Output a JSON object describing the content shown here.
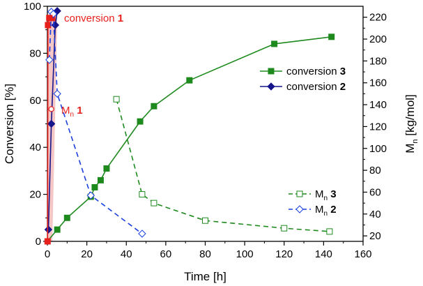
{
  "chart_data": {
    "type": "line",
    "xlabel": "Time [h]",
    "ylabel_left": "Conversion [%]",
    "ylabel_right": "M",
    "ylabel_right_sub": "n",
    "ylabel_right_unit": "[kg/mol]",
    "xlim": [
      0,
      160
    ],
    "ylim_left": [
      0,
      100
    ],
    "ylim_right": [
      15,
      230
    ],
    "x_ticks": [
      0,
      20,
      40,
      60,
      80,
      100,
      120,
      140,
      160
    ],
    "y_left_ticks": [
      0,
      20,
      40,
      60,
      80,
      100
    ],
    "y_right_ticks": [
      20,
      40,
      60,
      80,
      100,
      120,
      140,
      160,
      180,
      200,
      220
    ],
    "legend": {
      "conversion": {
        "position": "upper-right",
        "entries": [
          {
            "prefix": "conversion",
            "id": "3",
            "series": "conv3"
          },
          {
            "prefix": "conversion",
            "id": "2",
            "series": "conv2"
          }
        ]
      },
      "mn": {
        "position": "lower-right",
        "entries": [
          {
            "prefix": "M",
            "sub": "n",
            "id": "3",
            "series": "mn3"
          },
          {
            "prefix": "M",
            "sub": "n",
            "id": "2",
            "series": "mn2"
          }
        ]
      }
    },
    "annotations": [
      {
        "prefix": "conversion",
        "id": "1",
        "color": "#e8201c",
        "near_series": "conv1"
      },
      {
        "prefix": "M",
        "sub": "n",
        "id": "1",
        "color": "#e8201c",
        "near_series": "mn1"
      }
    ],
    "series": [
      {
        "name": "conversion 3",
        "key": "conv3",
        "axis": "left",
        "color": "#1e8a1e",
        "dash": "solid",
        "marker": "square-filled",
        "x": [
          0,
          5,
          10,
          22,
          24,
          27,
          30,
          47,
          54,
          72,
          115,
          144
        ],
        "y": [
          0,
          5,
          10,
          19,
          23,
          26,
          31,
          51,
          57.5,
          68.5,
          84,
          87
        ]
      },
      {
        "name": "conversion 2",
        "key": "conv2",
        "axis": "left",
        "color": "#15158c",
        "dash": "solid",
        "marker": "diamond-filled",
        "x": [
          0.5,
          2,
          4,
          5
        ],
        "y": [
          5,
          50,
          92,
          98
        ]
      },
      {
        "name": "conversion 1",
        "key": "conv1",
        "axis": "left",
        "color": "#e8201c",
        "dash": "solid",
        "marker": "square-filled",
        "x": [
          0.1,
          0.3,
          1,
          2.5
        ],
        "y": [
          0,
          92,
          95,
          95
        ]
      },
      {
        "name": "Mn 3",
        "key": "mn3",
        "axis": "right",
        "color": "#1e8a1e",
        "dash": "dashed",
        "marker": "square-open",
        "x": [
          35,
          48,
          54,
          80,
          120,
          143
        ],
        "y": [
          145,
          58,
          50,
          34,
          27,
          24
        ]
      },
      {
        "name": "Mn 2",
        "key": "mn2",
        "axis": "right",
        "color": "#1a3ee0",
        "dash": "dashed",
        "marker": "diamond-open",
        "x": [
          1,
          2,
          3,
          5,
          22,
          48
        ],
        "y": [
          181,
          225,
          223,
          150,
          57,
          22
        ]
      },
      {
        "name": "Mn 1",
        "key": "mn1",
        "axis": "right",
        "color": "#e8201c",
        "dash": "none",
        "marker": "circle-open",
        "x": [
          2
        ],
        "y": [
          136
        ]
      }
    ]
  }
}
